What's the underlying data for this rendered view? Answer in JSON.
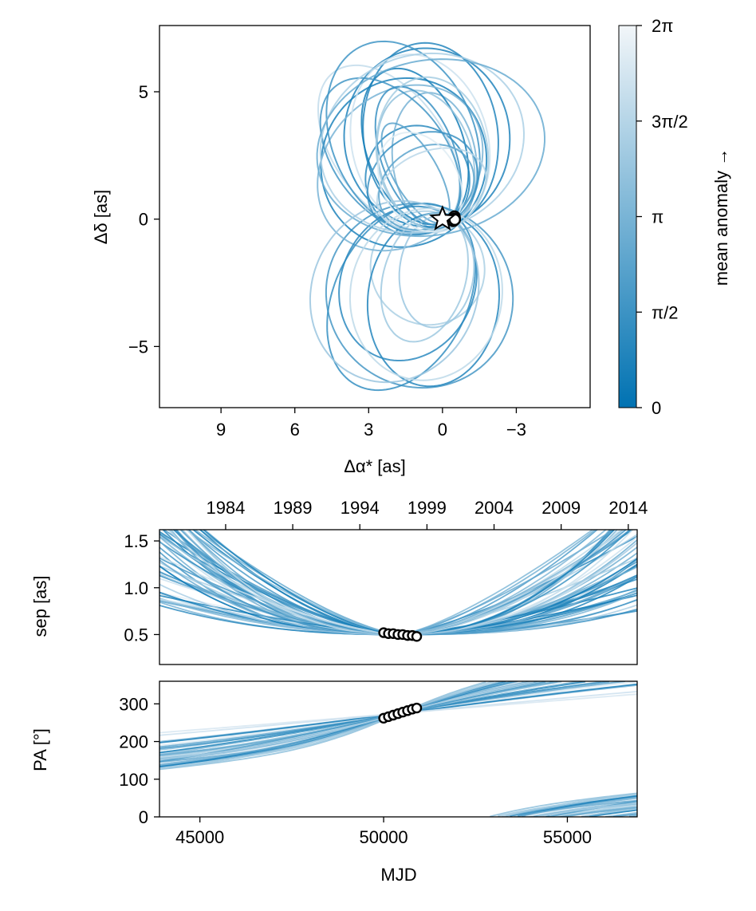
{
  "chart_data": [
    {
      "type": "line",
      "title": "",
      "xlabel": "Δα* [as]",
      "ylabel": "Δδ [as]",
      "xlim": [
        11.5,
        -6.0
      ],
      "ylim": [
        -7.4,
        7.6
      ],
      "xticks": [
        9,
        6,
        3,
        0,
        -3
      ],
      "xtick_labels": [
        "9",
        "6",
        "3",
        "0",
        "−3"
      ],
      "yticks": [
        5,
        0,
        -5
      ],
      "ytick_labels": [
        "5",
        "0",
        "−5"
      ],
      "star_marker": [
        0,
        0
      ],
      "observed_points": [
        [
          -0.45,
          0.05
        ],
        [
          -0.47,
          0.08
        ],
        [
          -0.49,
          0.1
        ],
        [
          -0.5,
          0.02
        ],
        [
          -0.48,
          -0.04
        ],
        [
          -0.44,
          -0.07
        ],
        [
          -0.5,
          -0.02
        ]
      ],
      "orbit_count": 30,
      "description_series": "sampled posterior orbits colored by mean anomaly"
    },
    {
      "type": "colorbar",
      "label": "mean anomaly →",
      "range": [
        0,
        6.2832
      ],
      "ticks": [
        0,
        1.5708,
        3.1416,
        4.7124,
        6.2832
      ],
      "tick_labels": [
        "0",
        "π/2",
        "π",
        "3π/2",
        "2π"
      ],
      "color_low": "#0072b2",
      "color_high": "#f2f6f9"
    },
    {
      "type": "line",
      "xlabel": "",
      "ylabel": "sep [as]",
      "xlim": [
        43900,
        56900
      ],
      "ylim": [
        0.18,
        1.62
      ],
      "yticks": [
        0.5,
        1.0,
        1.5
      ],
      "ytick_labels": [
        "0.5",
        "1.0",
        "1.5"
      ],
      "top_axis_years": [
        "1984",
        "1989",
        "1994",
        "1999",
        "2004",
        "2009",
        "2014"
      ],
      "top_axis_mjd": [
        45700,
        47526,
        49352,
        51179,
        53005,
        54831,
        56658
      ],
      "observations": [
        {
          "mjd": 50000,
          "value": 0.52
        },
        {
          "mjd": 50130,
          "value": 0.51
        },
        {
          "mjd": 50260,
          "value": 0.51
        },
        {
          "mjd": 50390,
          "value": 0.5
        },
        {
          "mjd": 50520,
          "value": 0.5
        },
        {
          "mjd": 50650,
          "value": 0.49
        },
        {
          "mjd": 50780,
          "value": 0.49
        },
        {
          "mjd": 50900,
          "value": 0.48
        }
      ],
      "pivot": {
        "mjd": 50450,
        "value": 0.5
      }
    },
    {
      "type": "line",
      "xlabel": "MJD",
      "ylabel": "PA [°]",
      "xlim": [
        43900,
        56900
      ],
      "ylim": [
        0,
        360
      ],
      "xticks": [
        45000,
        50000,
        55000
      ],
      "xtick_labels": [
        "45000",
        "50000",
        "55000"
      ],
      "yticks": [
        0,
        100,
        200,
        300
      ],
      "ytick_labels": [
        "0",
        "100",
        "200",
        "300"
      ],
      "observations": [
        {
          "mjd": 50000,
          "value": 262
        },
        {
          "mjd": 50130,
          "value": 266
        },
        {
          "mjd": 50260,
          "value": 270
        },
        {
          "mjd": 50390,
          "value": 274
        },
        {
          "mjd": 50520,
          "value": 278
        },
        {
          "mjd": 50650,
          "value": 282
        },
        {
          "mjd": 50780,
          "value": 286
        },
        {
          "mjd": 50900,
          "value": 289
        }
      ],
      "pivot": {
        "mjd": 50450,
        "value": 275
      }
    }
  ]
}
